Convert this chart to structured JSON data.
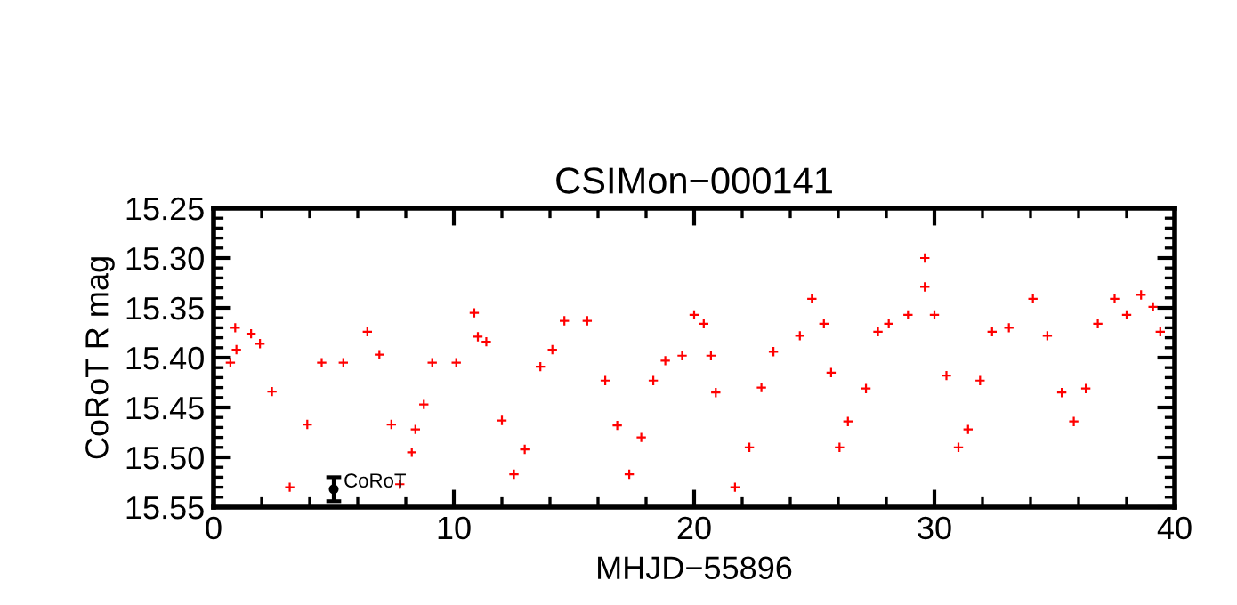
{
  "chart_data": {
    "type": "scatter",
    "title": "CSIMon−000141",
    "xlabel": "MHJD−55896",
    "ylabel": "CoRoT R mag",
    "xlim": [
      0,
      40
    ],
    "xticks": [
      0,
      10,
      20,
      30,
      40
    ],
    "ylim": [
      15.55,
      15.25
    ],
    "yticks": [
      {
        "value": 15.25,
        "label": "15.25"
      },
      {
        "value": 15.3,
        "label": "15.30"
      },
      {
        "value": 15.35,
        "label": "15.35"
      },
      {
        "value": 15.4,
        "label": "15.40"
      },
      {
        "value": 15.45,
        "label": "15.45"
      },
      {
        "value": 15.5,
        "label": "15.50"
      },
      {
        "value": 15.55,
        "label": "15.55"
      }
    ],
    "grid": false,
    "marker": "cross",
    "series": [
      {
        "color": "#ff0000",
        "x": [
          0.7,
          0.95,
          0.9,
          1.56,
          1.93,
          2.43,
          3.17,
          3.9,
          4.5,
          5.4,
          6.4,
          6.9,
          7.4,
          7.75,
          8.25,
          8.4,
          8.75,
          9.1,
          10.1,
          10.85,
          11.0,
          11.35,
          12.0,
          12.5,
          12.95,
          13.6,
          14.1,
          14.6,
          15.55,
          16.3,
          16.8,
          17.3,
          17.8,
          18.3,
          18.8,
          19.5,
          20.0,
          20.4,
          20.7,
          20.9,
          21.7,
          22.3,
          22.8,
          23.3,
          24.4,
          24.9,
          25.4,
          25.7,
          26.05,
          26.4,
          27.15,
          27.65,
          28.1,
          28.9,
          29.6,
          29.6,
          30.0,
          30.5,
          31.0,
          31.4,
          31.9,
          32.4,
          33.1,
          34.1,
          34.7,
          35.3,
          35.8,
          36.3,
          36.8,
          37.5,
          38.0,
          38.6,
          39.1,
          39.4
        ],
        "values": [
          15.405,
          15.392,
          15.37,
          15.376,
          15.386,
          15.434,
          15.53,
          15.467,
          15.405,
          15.405,
          15.374,
          15.397,
          15.467,
          15.527,
          15.495,
          15.472,
          15.447,
          15.405,
          15.405,
          15.355,
          15.379,
          15.384,
          15.463,
          15.517,
          15.492,
          15.409,
          15.392,
          15.363,
          15.363,
          15.423,
          15.468,
          15.517,
          15.48,
          15.423,
          15.403,
          15.398,
          15.357,
          15.366,
          15.398,
          15.435,
          15.53,
          15.49,
          15.43,
          15.394,
          15.378,
          15.341,
          15.366,
          15.415,
          15.49,
          15.464,
          15.431,
          15.374,
          15.366,
          15.357,
          15.329,
          15.3,
          15.357,
          15.418,
          15.49,
          15.472,
          15.423,
          15.374,
          15.37,
          15.341,
          15.378,
          15.435,
          15.464,
          15.431,
          15.366,
          15.341,
          15.357,
          15.337,
          15.349,
          15.374
        ]
      },
      {
        "color": "#000000",
        "marker": "circle",
        "x": [
          5.0
        ],
        "values": [
          15.532
        ],
        "errors": [
          0.012
        ]
      }
    ],
    "annotations": [
      {
        "text": "CoRoT",
        "x": 5.0,
        "y": 15.525
      }
    ]
  }
}
